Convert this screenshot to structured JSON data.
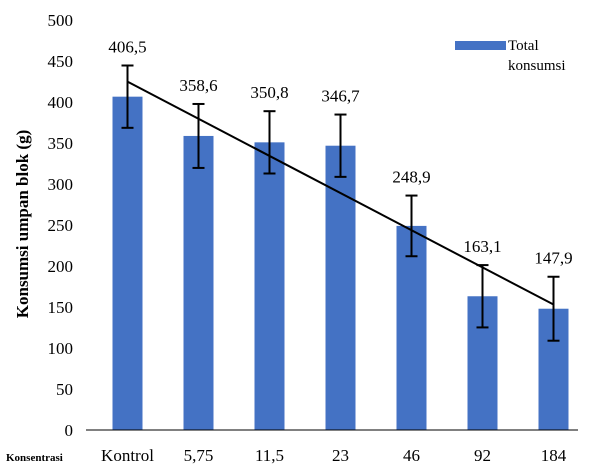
{
  "chart_data": {
    "type": "bar",
    "categories": [
      "Kontrol",
      "5,75",
      "11,5",
      "23",
      "46",
      "92",
      "184"
    ],
    "series": [
      {
        "name": "Total konsumsi",
        "values": [
          406.5,
          358.6,
          350.8,
          346.7,
          248.9,
          163.1,
          147.9
        ],
        "error": [
          38,
          39,
          38,
          38,
          37,
          38,
          39
        ],
        "color": "#4472C4"
      }
    ],
    "data_labels": [
      "406,5",
      "358,6",
      "350,8",
      "346,7",
      "248,9",
      "163,1",
      "147,9"
    ],
    "trendline": {
      "type": "linear",
      "color": "#000000"
    },
    "xlabel": "Konsentrasi",
    "ylabel": "Konsumsi umpan blok (g)",
    "ylim": [
      0,
      500
    ],
    "yticks": [
      0,
      50,
      100,
      150,
      200,
      250,
      300,
      350,
      400,
      450,
      500
    ],
    "grid": false,
    "legend": {
      "position": "top-right",
      "lines": [
        "Total",
        "konsumsi"
      ]
    }
  }
}
